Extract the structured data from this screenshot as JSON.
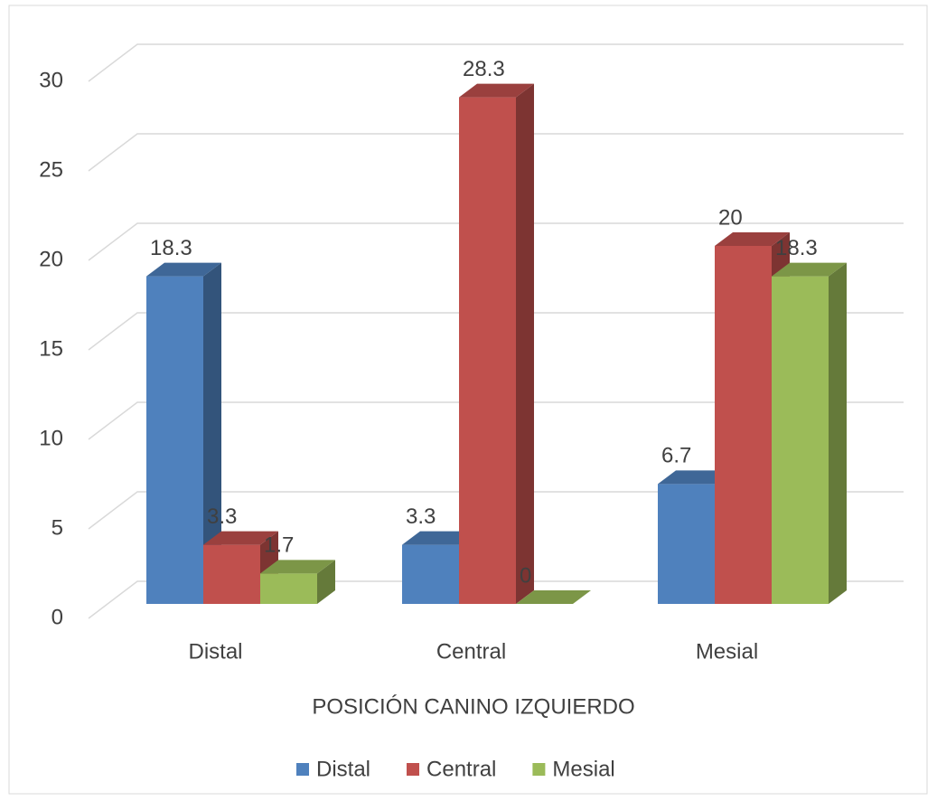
{
  "chart_data": {
    "type": "bar3d",
    "categories": [
      "Distal",
      "Central",
      "Mesial"
    ],
    "series": [
      {
        "name": "Distal",
        "color": "#4f81bd",
        "values": [
          18.3,
          3.3,
          6.7
        ]
      },
      {
        "name": "Central",
        "color": "#c0504d",
        "values": [
          3.3,
          28.3,
          20
        ]
      },
      {
        "name": "Mesial",
        "color": "#9bbb59",
        "values": [
          1.7,
          0,
          18.3
        ]
      }
    ],
    "x_label": "POSICIÓN CANINO IZQUIERDO",
    "ylim": [
      0,
      30
    ],
    "yticks": [
      0,
      5,
      10,
      15,
      20,
      25,
      30
    ],
    "grid": true,
    "legend": "bottom"
  }
}
